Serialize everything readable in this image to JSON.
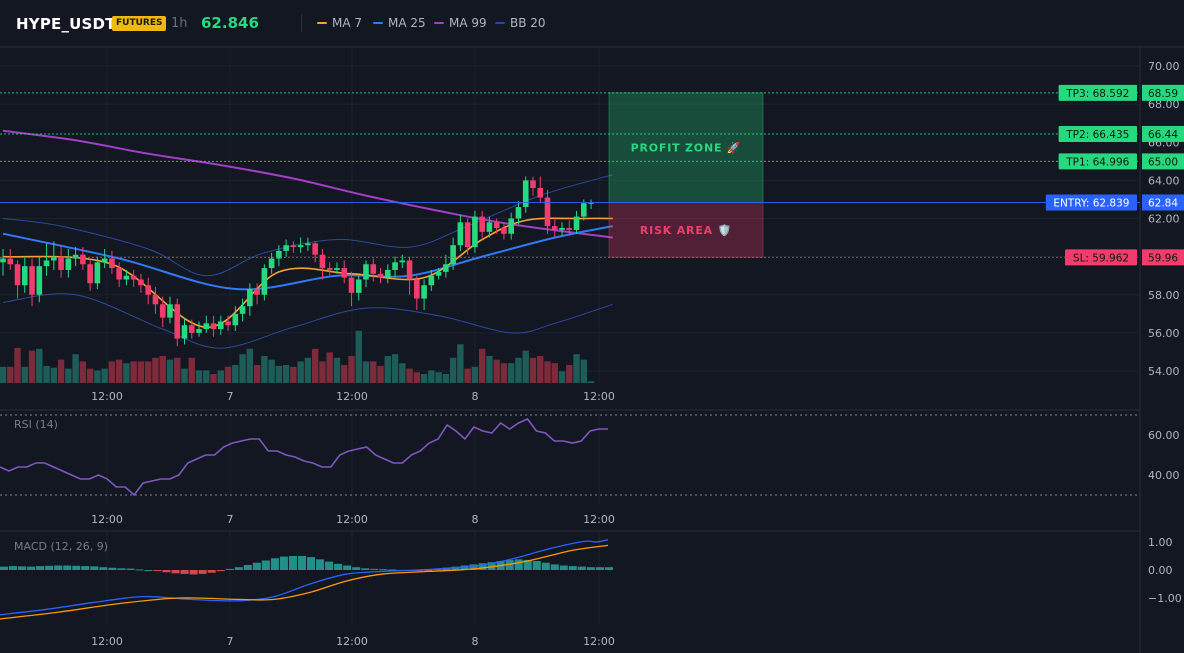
{
  "header": {
    "symbol": "HYPE_USDT",
    "badge": "FUTURES",
    "timeframe": "1h",
    "price": "62.846",
    "legend": [
      {
        "label": "MA 7",
        "color": "#f7a531"
      },
      {
        "label": "MA 25",
        "color": "#2f7bf6"
      },
      {
        "label": "MA 99",
        "color": "#a23fc6"
      },
      {
        "label": "BB 20",
        "color": "#2b4a9c"
      }
    ]
  },
  "colors": {
    "up": "#26d97f",
    "down": "#f23c6c",
    "vol_up": "#1d5c57",
    "vol_down": "#7d2b3a"
  },
  "chart_data": [
    {
      "type": "candlestick",
      "x_ticks": [
        "12:00",
        "7",
        "12:00",
        "8",
        "12:00"
      ],
      "y_ticks": [
        "70.00",
        "68.00",
        "66.00",
        "65.00",
        "64.00",
        "62.00",
        "60.00",
        "58.00",
        "56.00",
        "54.00"
      ],
      "ylim": [
        53.4,
        71.2
      ],
      "candles": [
        [
          59.7,
          59.9,
          59.0,
          60.4
        ],
        [
          59.9,
          59.6,
          59.3,
          60.4
        ],
        [
          59.6,
          58.5,
          57.8,
          59.8
        ],
        [
          58.5,
          59.5,
          58.1,
          60.0
        ],
        [
          59.5,
          58.0,
          57.4,
          59.9
        ],
        [
          58.0,
          59.5,
          57.6,
          60.0
        ],
        [
          59.5,
          59.8,
          59.0,
          60.7
        ],
        [
          59.8,
          60.0,
          59.3,
          60.8
        ],
        [
          60.0,
          59.3,
          58.9,
          60.6
        ],
        [
          59.3,
          59.9,
          58.9,
          60.4
        ],
        [
          59.9,
          60.1,
          59.5,
          60.5
        ],
        [
          60.1,
          59.6,
          59.3,
          60.5
        ],
        [
          59.6,
          58.6,
          58.2,
          59.9
        ],
        [
          58.6,
          59.7,
          58.3,
          60.0
        ],
        [
          59.7,
          59.9,
          59.4,
          60.4
        ],
        [
          59.9,
          59.4,
          59.1,
          60.3
        ],
        [
          59.4,
          58.8,
          58.4,
          59.7
        ],
        [
          58.8,
          59.0,
          58.5,
          59.3
        ],
        [
          59.0,
          58.8,
          58.4,
          59.3
        ],
        [
          58.8,
          58.5,
          58.1,
          59.1
        ],
        [
          58.5,
          58.0,
          57.5,
          58.9
        ],
        [
          58.0,
          57.5,
          57.0,
          58.4
        ],
        [
          57.5,
          56.8,
          56.3,
          57.9
        ],
        [
          56.8,
          57.5,
          56.5,
          57.9
        ],
        [
          57.5,
          55.7,
          55.3,
          57.8
        ],
        [
          55.7,
          56.4,
          55.4,
          56.8
        ],
        [
          56.4,
          56.0,
          55.7,
          56.7
        ],
        [
          56.0,
          56.2,
          55.8,
          56.6
        ],
        [
          56.2,
          56.5,
          56.0,
          56.9
        ],
        [
          56.5,
          56.2,
          55.8,
          56.9
        ],
        [
          56.2,
          56.6,
          55.9,
          56.9
        ],
        [
          56.6,
          56.4,
          56.1,
          56.9
        ],
        [
          56.4,
          57.0,
          56.1,
          57.4
        ],
        [
          57.0,
          57.4,
          56.6,
          57.8
        ],
        [
          57.4,
          58.3,
          56.9,
          58.6
        ],
        [
          58.3,
          58.0,
          57.5,
          58.6
        ],
        [
          58.0,
          59.4,
          57.7,
          59.6
        ],
        [
          59.4,
          59.9,
          59.1,
          60.2
        ],
        [
          59.9,
          60.3,
          59.5,
          60.6
        ],
        [
          60.3,
          60.6,
          60.0,
          60.9
        ],
        [
          60.6,
          60.5,
          60.2,
          60.8
        ],
        [
          60.5,
          60.6,
          60.2,
          61.0
        ],
        [
          60.6,
          60.7,
          60.3,
          61.0
        ],
        [
          60.7,
          60.1,
          59.7,
          60.8
        ],
        [
          60.1,
          59.4,
          58.8,
          60.4
        ],
        [
          59.4,
          59.3,
          59.0,
          59.7
        ],
        [
          59.3,
          59.4,
          59.1,
          59.7
        ],
        [
          59.4,
          58.9,
          58.6,
          59.8
        ],
        [
          58.9,
          58.1,
          57.4,
          59.2
        ],
        [
          58.1,
          58.8,
          57.7,
          59.0
        ],
        [
          58.8,
          59.6,
          58.4,
          59.8
        ],
        [
          59.6,
          59.1,
          58.7,
          59.9
        ],
        [
          59.1,
          58.9,
          58.6,
          59.4
        ],
        [
          58.9,
          59.3,
          58.6,
          59.6
        ],
        [
          59.3,
          59.7,
          58.9,
          60.0
        ],
        [
          59.7,
          59.8,
          59.4,
          60.1
        ],
        [
          59.8,
          58.8,
          58.0,
          60.0
        ],
        [
          58.8,
          57.8,
          57.2,
          59.0
        ],
        [
          57.8,
          58.5,
          57.2,
          58.8
        ],
        [
          58.5,
          59.0,
          58.2,
          59.3
        ],
        [
          59.0,
          59.2,
          58.8,
          59.4
        ],
        [
          59.2,
          59.6,
          58.9,
          60.1
        ],
        [
          59.6,
          60.6,
          59.3,
          61.0
        ],
        [
          60.6,
          61.8,
          60.3,
          62.2
        ],
        [
          61.8,
          60.5,
          60.1,
          62.0
        ],
        [
          60.5,
          62.1,
          60.2,
          62.4
        ],
        [
          62.1,
          61.3,
          61.0,
          62.4
        ],
        [
          61.3,
          61.8,
          61.0,
          62.1
        ],
        [
          61.8,
          61.5,
          61.2,
          62.0
        ],
        [
          61.5,
          61.2,
          60.9,
          61.8
        ],
        [
          61.2,
          62.0,
          60.9,
          62.3
        ],
        [
          62.0,
          62.6,
          61.7,
          62.9
        ],
        [
          62.6,
          64.0,
          62.3,
          64.2
        ],
        [
          64.0,
          63.6,
          63.2,
          64.2
        ],
        [
          63.6,
          63.1,
          62.8,
          64.2
        ],
        [
          63.1,
          61.6,
          61.2,
          63.5
        ],
        [
          61.6,
          61.4,
          61.0,
          62.0
        ],
        [
          61.4,
          61.5,
          61.1,
          61.8
        ],
        [
          61.5,
          61.4,
          61.1,
          61.9
        ],
        [
          61.4,
          62.1,
          61.2,
          62.4
        ],
        [
          62.1,
          62.8,
          61.9,
          63.0
        ],
        [
          62.8,
          62.84,
          62.5,
          63.0
        ]
      ],
      "volume": [
        [
          0.9,
          0.9,
          1.95,
          0.9,
          1.8,
          1.9,
          0.95,
          0.85,
          1.3,
          0.8,
          1.6,
          1.2,
          0.8,
          0.7,
          0.8,
          1.2,
          1.3,
          1.1,
          1.2,
          1.2,
          1.2,
          1.4,
          1.5,
          1.3,
          1.4,
          0.8,
          1.4,
          0.7,
          0.7,
          0.5,
          0.7,
          0.9,
          1.0,
          1.6,
          1.9,
          1.0,
          1.5,
          1.3,
          0.95,
          1.0,
          0.9,
          1.2,
          1.4,
          1.9,
          1.2,
          1.7,
          1.4,
          1.0,
          1.5,
          2.9,
          1.2,
          1.2,
          0.95,
          1.5,
          1.6,
          1.1,
          0.8,
          0.6,
          0.5,
          0.7,
          0.6,
          0.5,
          1.4,
          2.15,
          0.8,
          0.9,
          1.9,
          1.5,
          1.3,
          1.1,
          1.1,
          1.4,
          1.8,
          1.4,
          1.5,
          1.2,
          1.1,
          0.65,
          1.0,
          1.6,
          1.3,
          0.1
        ]
      ],
      "ma7": [
        [
          0,
          60.0
        ],
        [
          15,
          59.6
        ],
        [
          28,
          56.3
        ],
        [
          38,
          59.2
        ],
        [
          48,
          59.1
        ],
        [
          58,
          58.9
        ],
        [
          66,
          60.9
        ],
        [
          72,
          61.9
        ],
        [
          80,
          62.0
        ],
        [
          84,
          62.0
        ]
      ],
      "ma25": [
        [
          0,
          61.2
        ],
        [
          16,
          59.9
        ],
        [
          32,
          58.3
        ],
        [
          46,
          59.0
        ],
        [
          56,
          59.0
        ],
        [
          66,
          60.0
        ],
        [
          76,
          61.0
        ],
        [
          84,
          61.6
        ]
      ],
      "ma99": [
        [
          0,
          66.6
        ],
        [
          10,
          66.1
        ],
        [
          20,
          65.4
        ],
        [
          30,
          64.8
        ],
        [
          40,
          64.1
        ],
        [
          50,
          63.2
        ],
        [
          60,
          62.4
        ],
        [
          70,
          61.7
        ],
        [
          84,
          61.0
        ]
      ],
      "bb_upper": [
        [
          0,
          62.0
        ],
        [
          8,
          61.6
        ],
        [
          20,
          60.4
        ],
        [
          28,
          59.0
        ],
        [
          36,
          60.2
        ],
        [
          46,
          60.9
        ],
        [
          56,
          60.5
        ],
        [
          64,
          61.6
        ],
        [
          74,
          63.2
        ],
        [
          84,
          64.3
        ]
      ],
      "bb_lower": [
        [
          0,
          57.6
        ],
        [
          10,
          58.0
        ],
        [
          22,
          56.2
        ],
        [
          30,
          55.2
        ],
        [
          40,
          56.3
        ],
        [
          50,
          57.3
        ],
        [
          60,
          56.9
        ],
        [
          70,
          56.0
        ],
        [
          76,
          56.5
        ],
        [
          84,
          57.5
        ]
      ],
      "levels": [
        {
          "name": "tp3",
          "label": "TP3: 68.592",
          "value": 68.592,
          "price_label": "68.59",
          "color": "#26d97f"
        },
        {
          "name": "tp2",
          "label": "TP2: 66.435",
          "value": 66.435,
          "price_label": "66.44",
          "color": "#26d97f"
        },
        {
          "name": "tp1",
          "label": "TP1: 64.996",
          "value": 64.996,
          "price_label": "65.00",
          "color": "#26d97f"
        },
        {
          "name": "entry",
          "label": "ENTRY: 62.839",
          "value": 62.839,
          "price_label": "62.84",
          "color": "#2962ff"
        },
        {
          "name": "sl",
          "label": "SL: 59.962",
          "value": 59.962,
          "price_label": "59.96",
          "color": "#f23c6c"
        }
      ],
      "zones": [
        {
          "name": "profit-zone",
          "label": "PROFIT ZONE 🚀",
          "from": 62.839,
          "to": 68.592,
          "color": "#26d97f"
        },
        {
          "name": "risk-area",
          "label": "RISK AREA 🛡️",
          "from": 59.962,
          "to": 62.839,
          "color": "#f23c6c"
        }
      ]
    },
    {
      "type": "line",
      "title": "RSI (14)",
      "ylim": [
        26,
        74
      ],
      "y_ticks": [
        "60.00",
        "40.00"
      ],
      "bands": [
        70,
        30
      ],
      "values": [
        [
          0,
          44
        ],
        [
          3,
          42
        ],
        [
          6,
          44
        ],
        [
          9,
          44
        ],
        [
          12,
          46
        ],
        [
          15,
          46
        ],
        [
          18,
          44
        ],
        [
          21,
          42
        ],
        [
          24,
          40
        ],
        [
          27,
          38
        ],
        [
          30,
          38
        ],
        [
          33,
          40
        ],
        [
          36,
          38
        ],
        [
          39,
          34
        ],
        [
          42,
          34
        ],
        [
          45,
          30
        ],
        [
          48,
          36
        ],
        [
          51,
          37
        ],
        [
          54,
          38
        ],
        [
          57,
          38
        ],
        [
          60,
          40
        ],
        [
          63,
          46
        ],
        [
          66,
          48
        ],
        [
          69,
          50
        ],
        [
          72,
          50
        ],
        [
          75,
          54
        ],
        [
          78,
          56
        ],
        [
          81,
          57
        ],
        [
          84,
          58
        ],
        [
          87,
          58
        ],
        [
          90,
          52
        ],
        [
          93,
          52
        ],
        [
          96,
          50
        ],
        [
          99,
          49
        ],
        [
          102,
          47
        ],
        [
          105,
          46
        ],
        [
          108,
          44
        ],
        [
          111,
          44
        ],
        [
          114,
          50
        ],
        [
          117,
          52
        ],
        [
          120,
          53
        ],
        [
          123,
          54
        ],
        [
          126,
          50
        ],
        [
          129,
          48
        ],
        [
          132,
          46
        ],
        [
          135,
          46
        ],
        [
          138,
          50
        ],
        [
          141,
          52
        ],
        [
          144,
          56
        ],
        [
          147,
          58
        ],
        [
          150,
          65
        ],
        [
          153,
          62
        ],
        [
          156,
          58
        ],
        [
          159,
          64
        ],
        [
          162,
          62
        ],
        [
          165,
          61
        ],
        [
          168,
          66
        ],
        [
          171,
          63
        ],
        [
          174,
          66
        ],
        [
          177,
          68
        ],
        [
          180,
          62
        ],
        [
          183,
          61
        ],
        [
          186,
          57
        ],
        [
          189,
          57
        ],
        [
          192,
          56
        ],
        [
          195,
          57
        ],
        [
          198,
          62
        ],
        [
          201,
          63
        ],
        [
          204,
          63
        ]
      ]
    },
    {
      "type": "histogram",
      "title": "MACD (12, 26, 9)",
      "ylim": [
        -1.75,
        1.2
      ],
      "y_ticks": [
        "1.00",
        "0.00",
        "−1.00"
      ],
      "histogram": [
        0.12,
        0.14,
        0.13,
        0.12,
        0.14,
        0.15,
        0.16,
        0.16,
        0.15,
        0.14,
        0.13,
        0.1,
        0.08,
        0.06,
        0.05,
        0.02,
        0.0,
        -0.02,
        -0.08,
        -0.12,
        -0.14,
        -0.16,
        -0.14,
        -0.1,
        -0.04,
        0.04,
        0.1,
        0.18,
        0.26,
        0.34,
        0.42,
        0.48,
        0.5,
        0.5,
        0.46,
        0.38,
        0.3,
        0.22,
        0.16,
        0.1,
        0.06,
        0.04,
        0.03,
        0.02,
        0.0,
        -0.02,
        -0.03,
        -0.01,
        0.04,
        0.08,
        0.12,
        0.16,
        0.2,
        0.24,
        0.28,
        0.32,
        0.36,
        0.38,
        0.36,
        0.32,
        0.26,
        0.2,
        0.16,
        0.14,
        0.12,
        0.1,
        0.1,
        0.1
      ],
      "macd": [
        [
          0,
          -1.6
        ],
        [
          8,
          -1.4
        ],
        [
          16,
          -1.15
        ],
        [
          24,
          -0.95
        ],
        [
          32,
          -1.05
        ],
        [
          40,
          -1.1
        ],
        [
          46,
          -0.95
        ],
        [
          52,
          -0.5
        ],
        [
          58,
          -0.15
        ],
        [
          64,
          -0.05
        ],
        [
          70,
          0.0
        ],
        [
          74,
          0.05
        ],
        [
          80,
          0.15
        ],
        [
          86,
          0.4
        ],
        [
          92,
          0.75
        ],
        [
          98,
          1.02
        ],
        [
          100,
          1.0
        ],
        [
          102,
          1.08
        ]
      ],
      "signal": [
        [
          0,
          -1.75
        ],
        [
          10,
          -1.5
        ],
        [
          20,
          -1.2
        ],
        [
          30,
          -1.0
        ],
        [
          40,
          -1.05
        ],
        [
          46,
          -1.05
        ],
        [
          52,
          -0.8
        ],
        [
          58,
          -0.4
        ],
        [
          64,
          -0.15
        ],
        [
          72,
          -0.05
        ],
        [
          80,
          0.05
        ],
        [
          88,
          0.3
        ],
        [
          96,
          0.7
        ],
        [
          102,
          0.88
        ]
      ]
    }
  ]
}
